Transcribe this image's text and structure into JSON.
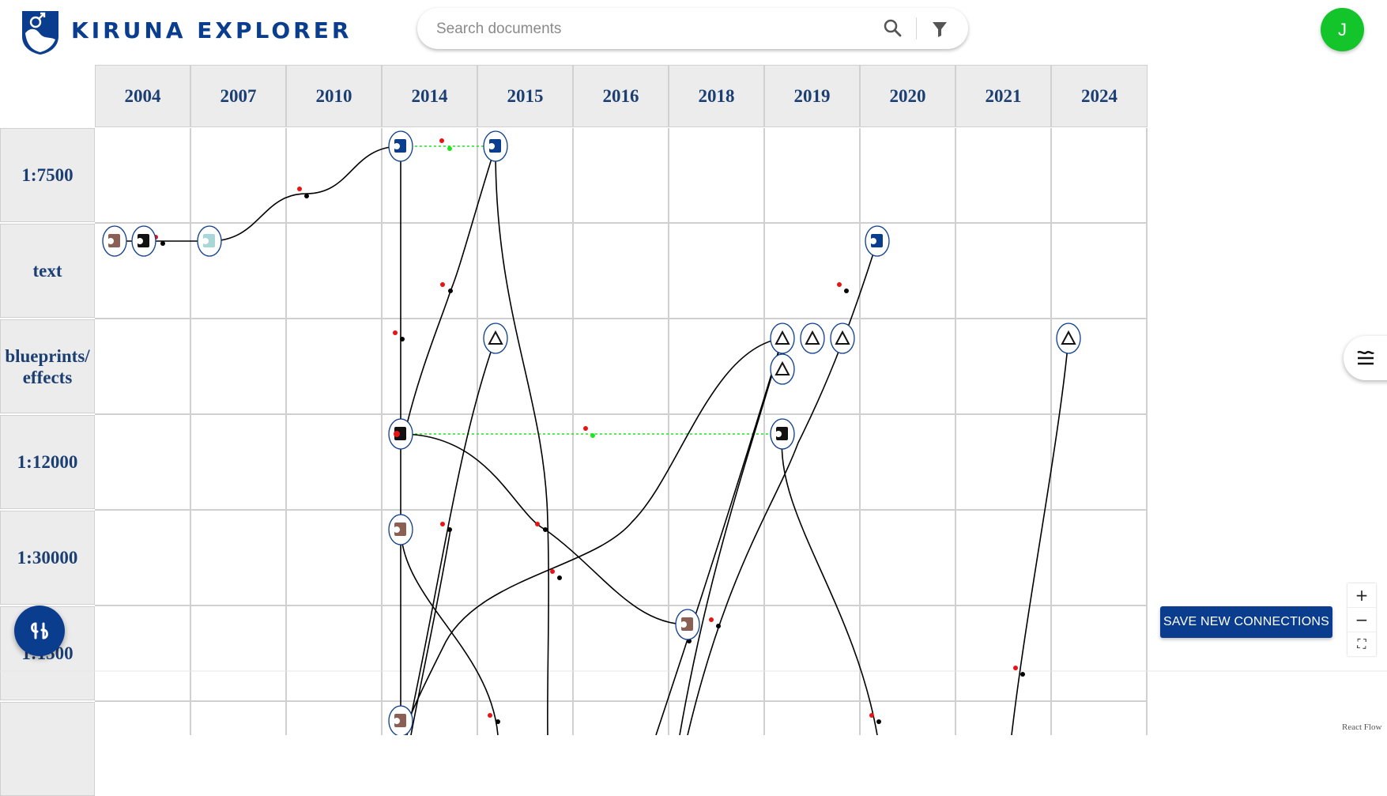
{
  "app": {
    "title": "KIRUNA EXPLORER"
  },
  "search": {
    "placeholder": "Search documents",
    "value": ""
  },
  "user": {
    "initial": "J"
  },
  "timeline": {
    "years": [
      "2004",
      "2007",
      "2010",
      "2014",
      "2015",
      "2016",
      "2018",
      "2019",
      "2020",
      "2021",
      "2024"
    ],
    "scales": [
      "1:7500",
      "text",
      "blueprints/ effects",
      "1:12000",
      "1:30000",
      "1:1500",
      ""
    ]
  },
  "actions": {
    "save_connections_label": "SAVE NEW CONNECTIONS"
  },
  "zoom": {
    "in_label": "+",
    "out_label": "−",
    "fit_label": "⛶"
  },
  "attribution": "React Flow",
  "colors": {
    "brand": "#0b3d8f",
    "avatar": "#13c42a",
    "header_cell": "#ececec",
    "edge": "#000000",
    "pending_edge": "#1ee61e"
  }
}
